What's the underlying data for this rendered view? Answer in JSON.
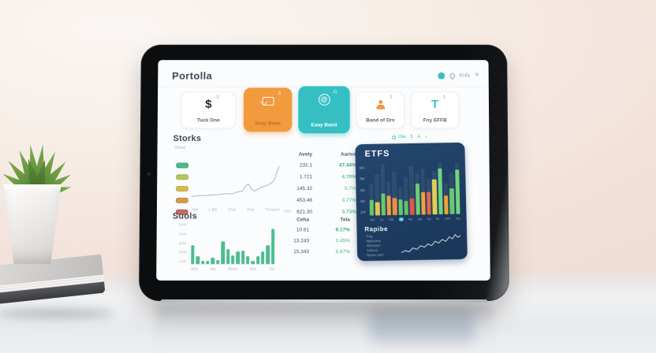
{
  "colors": {
    "accent_teal": "#35bfc2",
    "accent_orange": "#f19a3e",
    "panel_navy": "#1f3c5f",
    "positive_green": "#2fae84",
    "bar_green": "#4cbd8f"
  },
  "header": {
    "title": "Portolla",
    "user_label": "Knls",
    "close_label": "×"
  },
  "cards": [
    {
      "label": "Tuck One",
      "badge": "3",
      "icon": "dollar-icon"
    },
    {
      "label": "Seay Boas",
      "badge": "3",
      "icon": "mail-icon"
    },
    {
      "label": "Eaay Band",
      "badge": "G",
      "icon": "at-circle-icon"
    },
    {
      "label": "Band of Drs",
      "badge": "2",
      "icon": "person-icon"
    },
    {
      "label": "Fny EFFB",
      "badge": "1",
      "icon": "letter-t-icon"
    }
  ],
  "stocks": {
    "title": "Storks",
    "subtitle": "Sthae",
    "footnote": "Han",
    "col_value": "Avety",
    "col_change": "Aariva",
    "rows": [
      {
        "badge_color": "#49b98b",
        "value": "231.1",
        "change": "47.44%",
        "change_color": "#2fae84"
      },
      {
        "badge_color": "#b8c455",
        "value": "1.721",
        "change": "4.70%",
        "change_color": "#58c29a"
      },
      {
        "badge_color": "#d8b94b",
        "value": "145.32",
        "change": "0.7%",
        "change_color": "#8fd7bd"
      },
      {
        "badge_color": "#d99a4a",
        "value": "453.46",
        "change": "3.77%",
        "change_color": "#7ccfb0"
      },
      {
        "badge_color": "#c46a62",
        "value": "621.30",
        "change": "3.73%",
        "change_color": "#58c29a"
      }
    ],
    "chart": {
      "type": "line",
      "stroke": "#aeb4b9",
      "x_labels": [
        "Tod",
        "1 Bd",
        "Char",
        "Twd",
        "Thmand"
      ],
      "points": [
        [
          0,
          82
        ],
        [
          8,
          80
        ],
        [
          16,
          80
        ],
        [
          24,
          79
        ],
        [
          32,
          78
        ],
        [
          40,
          76
        ],
        [
          46,
          77
        ],
        [
          52,
          73
        ],
        [
          58,
          71
        ],
        [
          62,
          60
        ],
        [
          65,
          57
        ],
        [
          68,
          66
        ],
        [
          72,
          71
        ],
        [
          77,
          66
        ],
        [
          82,
          62
        ],
        [
          86,
          60
        ],
        [
          90,
          56
        ],
        [
          94,
          50
        ],
        [
          97,
          34
        ],
        [
          100,
          20
        ]
      ]
    }
  },
  "etfs": {
    "title": "ETFS",
    "toolbar": [
      "19a",
      "3",
      "A",
      "›"
    ],
    "y_labels": [
      "6M",
      "5M",
      "4M",
      "2M",
      "1M"
    ],
    "x_labels": [
      "3Br",
      "Tu",
      "736",
      "Jk",
      "Ma",
      "Me",
      "Na",
      "84",
      "10%",
      "Ma"
    ],
    "x_highlight_index": 3,
    "bars": [
      {
        "v": 0.3,
        "c": "#69c86f"
      },
      {
        "v": 0.26,
        "c": "#e3c44e"
      },
      {
        "v": 0.42,
        "c": "#69c86f"
      },
      {
        "v": 0.38,
        "c": "#f0a03e"
      },
      {
        "v": 0.34,
        "c": "#ee8f3f"
      },
      {
        "v": 0.3,
        "c": "#69c86f"
      },
      {
        "v": 0.27,
        "c": "#5cc36a"
      },
      {
        "v": 0.32,
        "c": "#e05545"
      },
      {
        "v": 0.6,
        "c": "#6ccf77"
      },
      {
        "v": 0.44,
        "c": "#f0a03e"
      },
      {
        "v": 0.44,
        "c": "#e06a4a"
      },
      {
        "v": 0.68,
        "c": "#dfcf55"
      },
      {
        "v": 0.9,
        "c": "#6fd680"
      },
      {
        "v": 0.36,
        "c": "#f0a03e"
      },
      {
        "v": 0.5,
        "c": "#69c86f"
      },
      {
        "v": 0.86,
        "c": "#6fd680"
      }
    ],
    "bg_bars": [
      0.6,
      0.8,
      1.0,
      0.65,
      0.85,
      0.55,
      0.75,
      0.95,
      0.8,
      0.9,
      0.7,
      0.85,
      1.0,
      0.6,
      0.8,
      1.0
    ],
    "sub": {
      "title": "Rapibe",
      "stroke": "#d7dde2",
      "lines": [
        "Pag",
        "Iqhesane",
        "Wesham",
        "Sabirst",
        "Nurav sein"
      ],
      "line_points": [
        [
          0,
          88
        ],
        [
          7,
          80
        ],
        [
          13,
          85
        ],
        [
          20,
          70
        ],
        [
          26,
          76
        ],
        [
          33,
          62
        ],
        [
          39,
          68
        ],
        [
          45,
          55
        ],
        [
          51,
          62
        ],
        [
          57,
          45
        ],
        [
          63,
          52
        ],
        [
          69,
          38
        ],
        [
          75,
          46
        ],
        [
          81,
          28
        ],
        [
          86,
          36
        ],
        [
          91,
          20
        ],
        [
          95,
          30
        ],
        [
          100,
          24
        ]
      ]
    }
  },
  "suols": {
    "title": "Suols",
    "col_value": "Ceha",
    "col_change": "Tela",
    "rows": [
      {
        "value": "10.61",
        "change": "9.17%",
        "change_color": "#2fae84"
      },
      {
        "value": "13.243",
        "change": "3.45%",
        "change_color": "#7ccfb0"
      },
      {
        "value": "15.343",
        "change": "5.87%",
        "change_color": "#7ccfb0"
      }
    ],
    "chart": {
      "type": "bar",
      "bar_color": "#4cbd8f",
      "y_labels": [
        "500k",
        "400k",
        "300k",
        "200k",
        "100k"
      ],
      "x_labels": [
        "Wm",
        "Mu",
        "Mmd",
        "Aml",
        "Tm"
      ],
      "values": [
        0.45,
        0.18,
        0.08,
        0.08,
        0.15,
        0.1,
        0.55,
        0.35,
        0.2,
        0.3,
        0.32,
        0.18,
        0.08,
        0.18,
        0.3,
        0.45,
        0.85
      ]
    }
  }
}
